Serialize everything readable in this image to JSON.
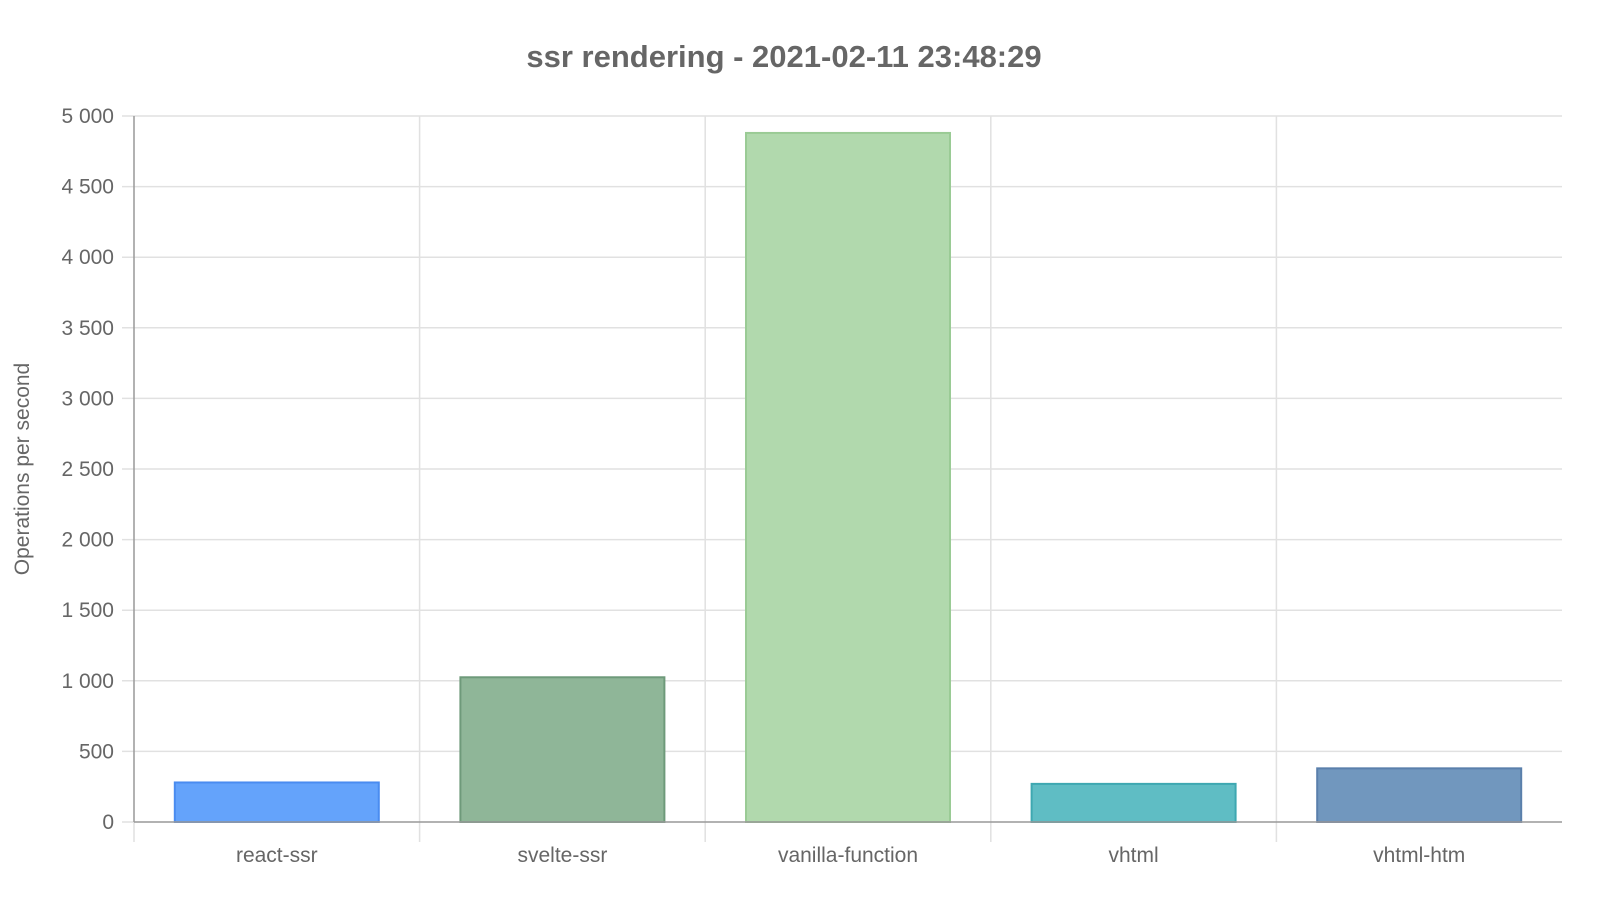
{
  "chart_data": {
    "type": "bar",
    "title": "ssr rendering - 2021-02-11 23:48:29",
    "xlabel": "",
    "ylabel": "Operations per second",
    "categories": [
      "react-ssr",
      "svelte-ssr",
      "vanilla-function",
      "vhtml",
      "vhtml-htm"
    ],
    "values": [
      280,
      1025,
      4880,
      270,
      380
    ],
    "ylim": [
      0,
      5000
    ],
    "yticks": [
      0,
      500,
      1000,
      1500,
      2000,
      2500,
      3000,
      3500,
      4000,
      4500,
      5000
    ],
    "ytick_labels": [
      "0",
      "500",
      "1 000",
      "1 500",
      "2 000",
      "2 500",
      "3 000",
      "3 500",
      "4 000",
      "4 500",
      "5 000"
    ],
    "grid": true,
    "legend": "none",
    "bar_colors": [
      {
        "fill": "#64a3fb",
        "stroke": "#4a8cf0"
      },
      {
        "fill": "#8fb698",
        "stroke": "#6e9a7a"
      },
      {
        "fill": "#b1d9ad",
        "stroke": "#9acb95"
      },
      {
        "fill": "#5fbdc4",
        "stroke": "#3ea8b1"
      },
      {
        "fill": "#7197be",
        "stroke": "#5a7fab"
      }
    ]
  }
}
